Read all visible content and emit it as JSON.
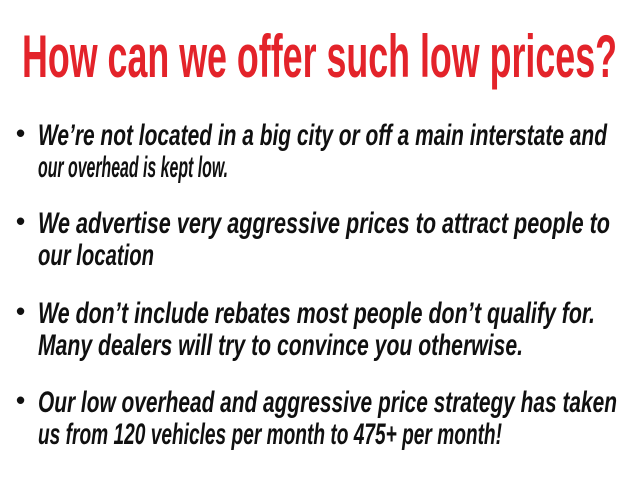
{
  "slide": {
    "background": "#ffffff",
    "title": "How can we offer such low prices?",
    "title_color": "#e3232a",
    "text_color": "#101010",
    "bullet_char": "•",
    "bullets": [
      {
        "line1": "We’re not located in a big city or off a main interstate and",
        "line2": "our overhead is kept low."
      },
      {
        "line1": "We advertise very aggressive prices to attract people to",
        "line2": "our location"
      },
      {
        "line1": "We don’t include rebates most people don’t qualify for.",
        "line2": "Many dealers will try to convince you otherwise."
      },
      {
        "line1": "Our low overhead and aggressive price strategy has taken",
        "line2": "us from 120 vehicles per month to 475+ per month!"
      }
    ]
  }
}
